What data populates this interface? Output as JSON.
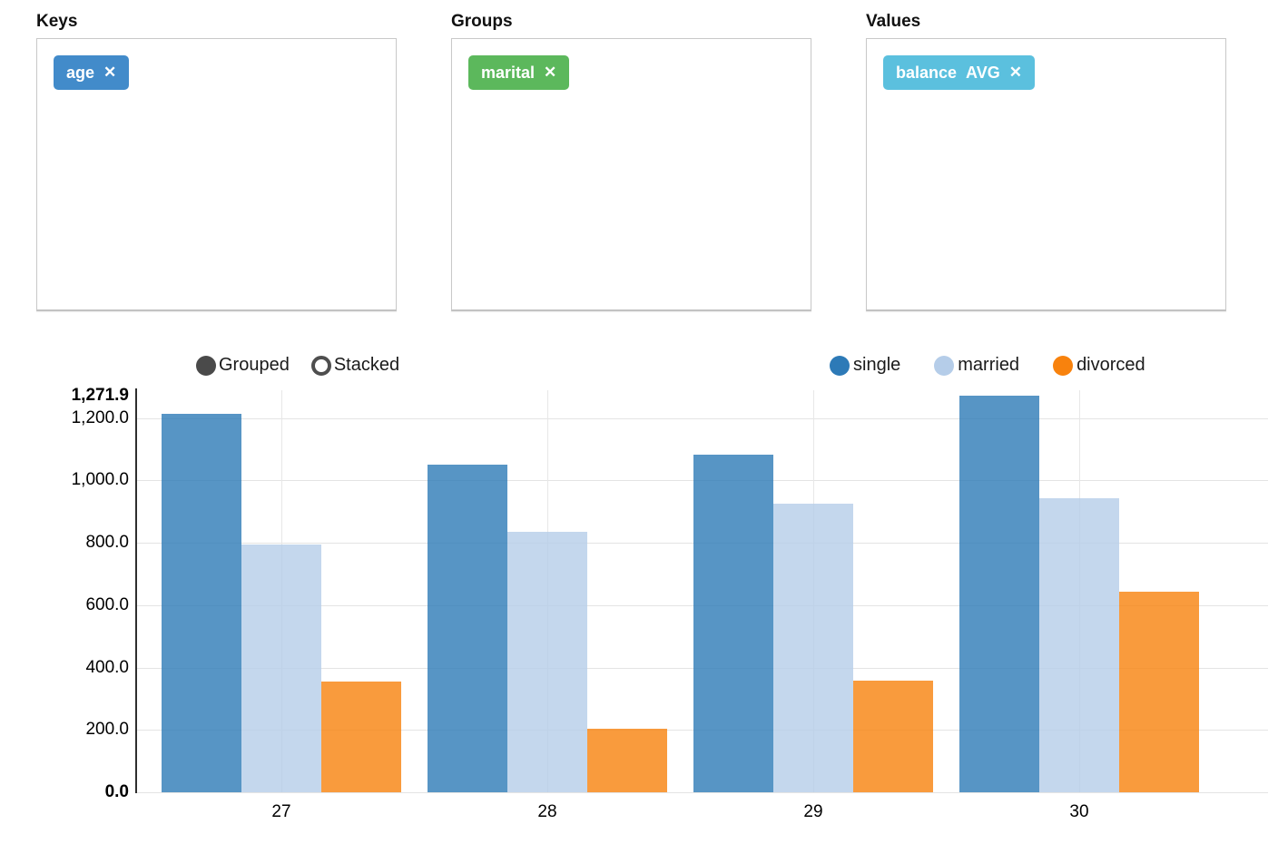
{
  "panels": [
    {
      "title": "Keys",
      "tags": [
        {
          "label": "age",
          "agg": "",
          "color": "#428bca"
        }
      ]
    },
    {
      "title": "Groups",
      "tags": [
        {
          "label": "marital",
          "agg": "",
          "color": "#5cb85c"
        }
      ]
    },
    {
      "title": "Values",
      "tags": [
        {
          "label": "balance",
          "agg": "AVG",
          "color": "#5bc0de"
        }
      ]
    }
  ],
  "remove_icon_glyph": "✕",
  "chart_controls": {
    "grouped_label": "Grouped",
    "stacked_label": "Stacked",
    "selected": "Grouped",
    "toggle_color": "#4a4a4a"
  },
  "chart_data": {
    "type": "bar",
    "mode": "grouped",
    "categories": [
      "27",
      "28",
      "29",
      "30"
    ],
    "series": [
      {
        "name": "single",
        "color": "#2d7ab7",
        "values": [
          1213,
          1050,
          1082,
          1271.9
        ]
      },
      {
        "name": "married",
        "color": "#b5cde9",
        "values": [
          794,
          835,
          925,
          943
        ]
      },
      {
        "name": "divorced",
        "color": "#f8820d",
        "values": [
          356,
          204,
          358,
          643
        ]
      }
    ],
    "xlabel": "",
    "ylabel": "",
    "ylim": [
      0,
      1271.9
    ],
    "yticks": [
      {
        "label": "1,271.9",
        "value": 1271.9,
        "bold": true
      },
      {
        "label": "1,200.0",
        "value": 1200,
        "bold": false
      },
      {
        "label": "1,000.0",
        "value": 1000,
        "bold": false
      },
      {
        "label": "800.0",
        "value": 800,
        "bold": false
      },
      {
        "label": "600.0",
        "value": 600,
        "bold": false
      },
      {
        "label": "400.0",
        "value": 400,
        "bold": false
      },
      {
        "label": "200.0",
        "value": 200,
        "bold": false
      },
      {
        "label": "0.0",
        "value": 0,
        "bold": true
      }
    ],
    "grid": true,
    "legend_position": "top-right"
  }
}
